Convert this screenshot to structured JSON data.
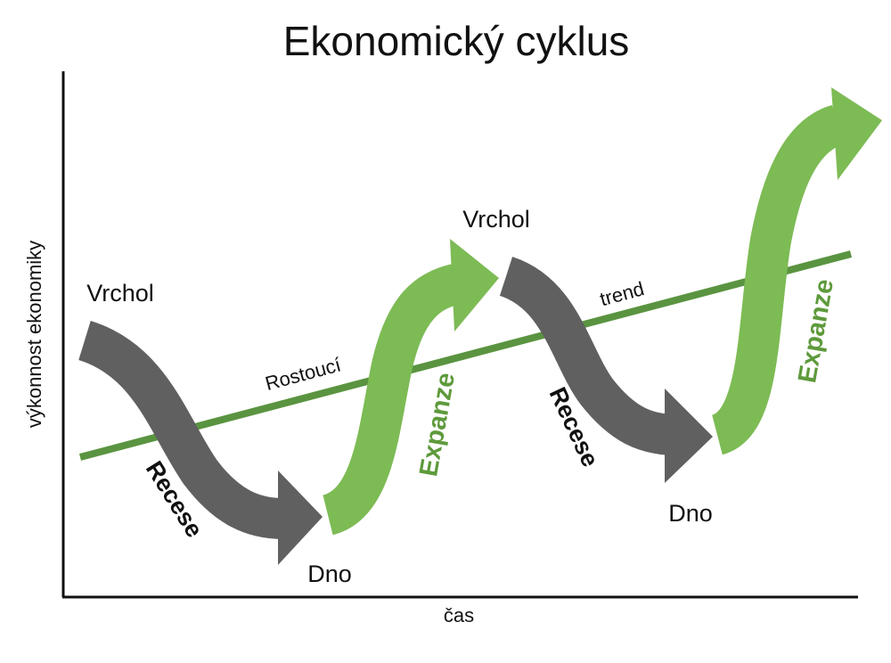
{
  "title": "Ekonomický cyklus",
  "axes": {
    "y_label": "výkonnost ekonomiky",
    "x_label": "čas"
  },
  "trend": {
    "label_left": "Rostoucí",
    "label_right": "trend"
  },
  "labels": {
    "peak_1": "Vrchol",
    "peak_2": "Vrchol",
    "trough_1": "Dno",
    "trough_2": "Dno",
    "recession_1": "Recese",
    "recession_2": "Recese",
    "expansion_1": "Expanze",
    "expansion_2": "Expanze"
  },
  "colors": {
    "recession_arrow": "#606060",
    "expansion_arrow": "#7dbb55",
    "trend_line": "#5a9440",
    "expansion_text": "#5e9a3c"
  }
}
